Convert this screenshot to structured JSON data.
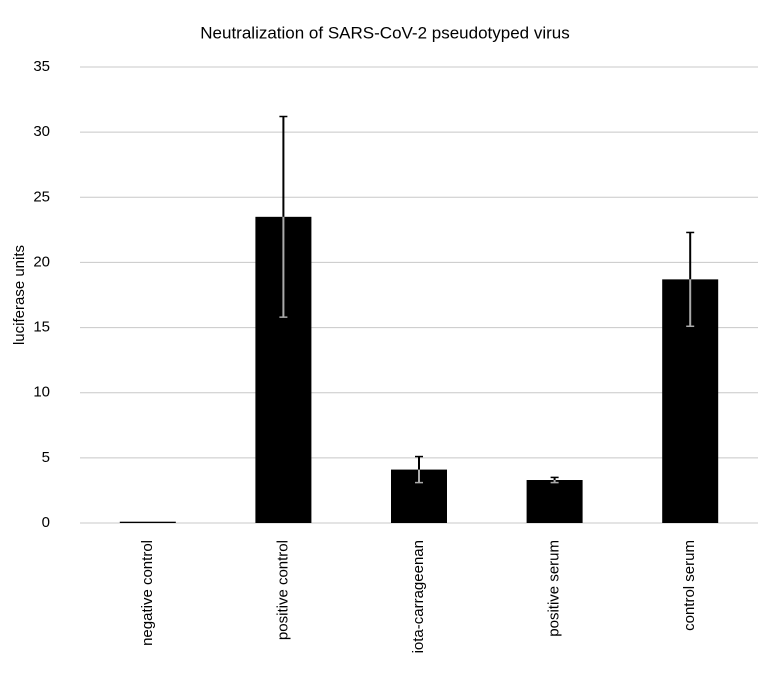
{
  "chart_data": {
    "type": "bar",
    "title": "Neutralization of SARS-CoV-2 pseudotyped virus",
    "ylabel": "luciferase units",
    "categories": [
      "negative control",
      "positive control",
      "iota-carrageenan",
      "positive serum",
      "control serum"
    ],
    "values": [
      0.1,
      23.5,
      4.1,
      3.3,
      18.7
    ],
    "errors": [
      0,
      7.7,
      1.0,
      0.2,
      3.6
    ],
    "color": "#000000",
    "ylim": [
      0,
      35
    ],
    "yticks": [
      0,
      5,
      10,
      15,
      20,
      25,
      30,
      35
    ],
    "grid": true
  }
}
